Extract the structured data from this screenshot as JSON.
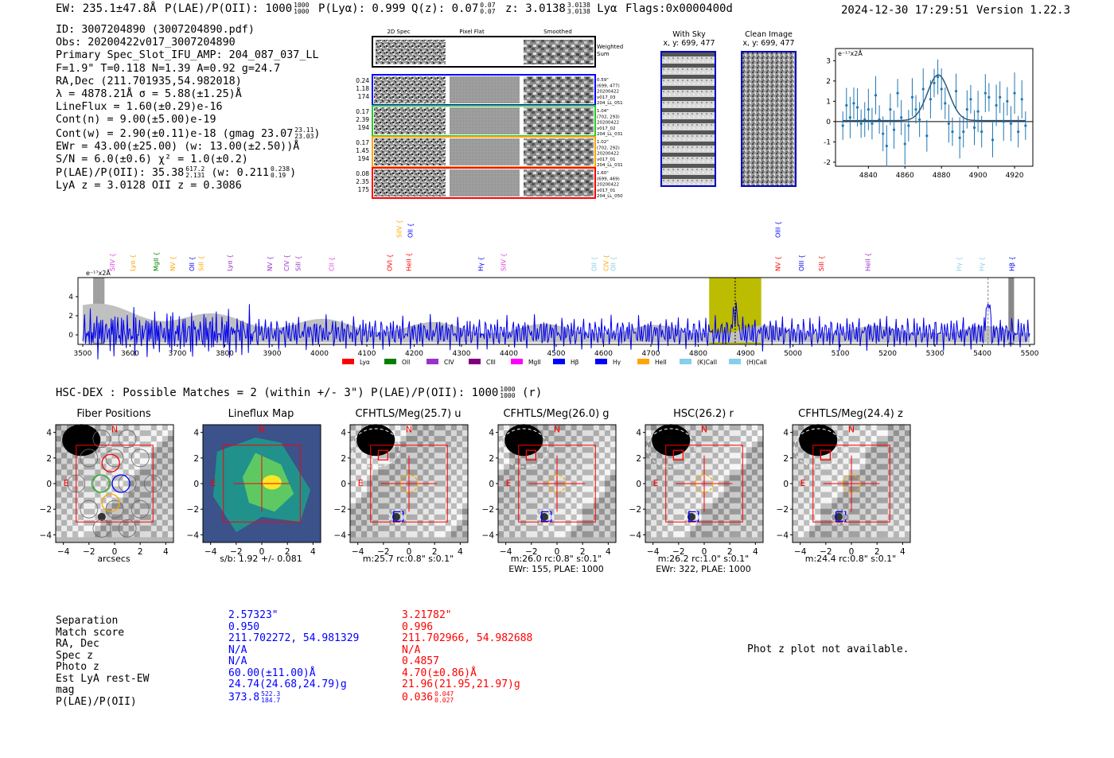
{
  "header": {
    "ew": "EW: 235.1±47.8Å",
    "plae_label": "P(LAE)/P(OII): 1000",
    "plae_up": "1000",
    "plae_dn": "1000",
    "plya": "P(Lyα): 0.999",
    "qz_label": "Q(z): 0.07",
    "qz_up": "0.07",
    "qz_dn": "0.07",
    "z_label": "z: 3.0138",
    "z_up": "3.0138",
    "z_dn": "3.0138",
    "z_line": "Lyα",
    "flags": "Flags:0x0000400d",
    "datetime": "2024-12-30 17:29:51",
    "version": "Version 1.22.3"
  },
  "info": {
    "id": "ID: 3007204890 (3007204890.pdf)",
    "obs": "Obs: 20200422v017_3007204890",
    "primary": "Primary Spec_Slot_IFU_AMP: 204_087_037_LL",
    "params": "F=1.9\"  T=0.118  N=1.39  A=0.92  g=24.7",
    "radec": "RA,Dec (211.701935,54.982018)",
    "lambda": "λ = 4878.21Å   σ = 5.88(±1.25)Å",
    "lineflux": "LineFlux = 1.60(±0.29)e-16",
    "contn": "Cont(n) = 9.00(±5.00)e-19",
    "contw": "Cont(w) = 2.90(±0.11)e-18 (gmag 23.07",
    "contw_up": "23.11",
    "contw_dn": "23.03",
    "contw_end": ")",
    "ewr": "EWr = 43.00(±25.00) (w: 13.00(±2.50))Å",
    "sn": "S/N = 6.0(±0.6)  χ² = 1.0(±0.2)",
    "plae": "P(LAE)/P(OII): 35.38",
    "plae_up": "617.2",
    "plae_dn": "2.131",
    "plae_w": "(w: 0.211",
    "plae_w_up": "0.238",
    "plae_w_dn": "0.19",
    "plae_w_end": ")",
    "lyaz": "LyA z = 3.0128   OII z = 0.3086"
  },
  "cutouts": {
    "col_titles": [
      "2D Spec",
      "Pixel Flat",
      "Smoothed"
    ],
    "weighted_sum": [
      "Weighted",
      "Sum"
    ],
    "rows": [
      {
        "left": [
          "0.24",
          "1.18",
          "174"
        ],
        "right": [
          "0.59\"",
          "(699, 477)",
          "20200422",
          "v017_03",
          "204_LL_051"
        ],
        "color": "#0000ff"
      },
      {
        "left": [
          "0.17",
          "2.39",
          "194"
        ],
        "right": [
          "1.04\"",
          "(702, 293)",
          "20200422",
          "v017_02",
          "204_LL_031"
        ],
        "color": "#22cc22"
      },
      {
        "left": [
          "0.17",
          "1.45",
          "194"
        ],
        "right": [
          "1.02\"",
          "(702, 292)",
          "20200422",
          "v017_01",
          "204_LL_031"
        ],
        "color": "#ffa500"
      },
      {
        "left": [
          "0.08",
          "2.35",
          "175"
        ],
        "right": [
          "1.60\"",
          "(699, 469)",
          "20200422",
          "v017_01",
          "204_LL_050"
        ],
        "color": "#ff0000"
      }
    ],
    "with_sky": [
      "With Sky",
      "x, y: 699, 477"
    ],
    "clean": [
      "Clean Image",
      "x, y: 699, 477"
    ]
  },
  "zoom_chart": {
    "type": "scatter",
    "ylabel": "e⁻¹⁷x2Å",
    "xlim": [
      4822,
      4930
    ],
    "ylim": [
      -2.2,
      3.6
    ],
    "xticks": [
      4840,
      4860,
      4880,
      4900,
      4920
    ],
    "yticks": [
      -2,
      -1,
      0,
      1,
      2,
      3
    ],
    "gauss": {
      "mu": 4878.2,
      "sigma": 5.88,
      "amp": 2.25,
      "base": 0.05
    },
    "points_x": [
      4826,
      4828,
      4830,
      4832,
      4834,
      4836,
      4838,
      4840,
      4842,
      4844,
      4846,
      4848,
      4850,
      4852,
      4854,
      4856,
      4858,
      4860,
      4862,
      4864,
      4866,
      4868,
      4870,
      4872,
      4874,
      4876,
      4878,
      4880,
      4882,
      4884,
      4886,
      4888,
      4890,
      4892,
      4894,
      4896,
      4898,
      4900,
      4902,
      4904,
      4906,
      4908,
      4910,
      4912,
      4914,
      4916,
      4918,
      4920,
      4922,
      4924,
      4926
    ],
    "points_y": [
      -0.2,
      0.8,
      0.2,
      0.9,
      0.7,
      -0.1,
      0.1,
      0.6,
      -0.1,
      1.3,
      0.1,
      -0.6,
      -1.2,
      0.6,
      -0.4,
      1.4,
      0.2,
      -1.1,
      -0.2,
      1.2,
      0.6,
      0.1,
      1.6,
      -0.7,
      1.1,
      1.9,
      2.2,
      1.6,
      0.9,
      -0.1,
      -0.5,
      1.5,
      -0.8,
      -0.5,
      0.6,
      1.1,
      -0.3,
      0.5,
      -0.5,
      1.4,
      1.2,
      -0.9,
      0.8,
      1.2,
      0.0,
      1.0,
      -0.1,
      1.4,
      -0.5,
      1.1,
      -0.2
    ]
  },
  "spectrum": {
    "type": "line",
    "ylabel": "e⁻¹⁷x2Å",
    "xlim": [
      3490,
      5510
    ],
    "ylim": [
      -1.0,
      6.0
    ],
    "xticks": [
      3500,
      3600,
      3700,
      3800,
      3900,
      4000,
      4100,
      4200,
      4300,
      4400,
      4500,
      4600,
      4700,
      4800,
      4900,
      5000,
      5100,
      5200,
      5300,
      5400,
      5500
    ],
    "yticks": [
      0,
      2,
      4
    ],
    "highlight": [
      4823,
      4933
    ],
    "line_center": 4878,
    "lines": [
      {
        "x": 3562,
        "label": "SiIV",
        "color": "#e040e0"
      },
      {
        "x": 3605,
        "label": "Lyα",
        "color": "#ffa500"
      },
      {
        "x": 3655,
        "label": "MgII",
        "color": "#008000"
      },
      {
        "x": 3690,
        "label": "NV",
        "color": "#ffa500"
      },
      {
        "x": 3730,
        "label": "OII",
        "color": "#0000ff"
      },
      {
        "x": 3750,
        "label": "SiII",
        "color": "#ffa500"
      },
      {
        "x": 3810,
        "label": "Lyα",
        "color": "#9932cc"
      },
      {
        "x": 3895,
        "label": "NV",
        "color": "#9932cc"
      },
      {
        "x": 3930,
        "label": "CIV",
        "color": "#9932cc"
      },
      {
        "x": 3955,
        "label": "SiII",
        "color": "#9932cc"
      },
      {
        "x": 4025,
        "label": "CII",
        "color": "#e040e0"
      },
      {
        "x": 4148,
        "label": "OVI",
        "color": "#ff0000"
      },
      {
        "x": 4188,
        "label": "HeII",
        "color": "#ff0000"
      },
      {
        "x": 4340,
        "label": "Hγ",
        "color": "#0000ff"
      },
      {
        "x": 4388,
        "label": "SiIV",
        "color": "#e040e0"
      },
      {
        "x": 4580,
        "label": "OII",
        "color": "#87ceeb"
      },
      {
        "x": 4605,
        "label": "CIV",
        "color": "#ffa500"
      },
      {
        "x": 4620,
        "label": "OII",
        "color": "#87ceeb"
      },
      {
        "x": 4968,
        "label": "NV",
        "color": "#ff0000"
      },
      {
        "x": 5018,
        "label": "OIII",
        "color": "#0000ff"
      },
      {
        "x": 5060,
        "label": "SiII",
        "color": "#ff0000"
      },
      {
        "x": 5158,
        "label": "HeII",
        "color": "#9932cc"
      },
      {
        "x": 5350,
        "label": "Hγ",
        "color": "#87ceeb"
      },
      {
        "x": 5398,
        "label": "Hγ",
        "color": "#87ceeb"
      },
      {
        "x": 5462,
        "label": "Hβ",
        "color": "#0000ff"
      }
    ],
    "upper_lines": [
      {
        "x": 4168,
        "label": "SiIV",
        "color": "#ffa500"
      },
      {
        "x": 4192,
        "label": "OII",
        "color": "#0000ff"
      },
      {
        "x": 4968,
        "label": "OIII",
        "color": "#0000ff"
      }
    ],
    "legend": [
      {
        "label": "Lyα",
        "color": "#ff0000"
      },
      {
        "label": "OII",
        "color": "#008000"
      },
      {
        "label": "CIV",
        "color": "#9932cc"
      },
      {
        "label": "CIII",
        "color": "#800080"
      },
      {
        "label": "MgII",
        "color": "#ff00ff"
      },
      {
        "label": "Hβ",
        "color": "#0000ff"
      },
      {
        "label": "Hγ",
        "color": "#0000ff"
      },
      {
        "label": "HeII",
        "color": "#ffa500"
      },
      {
        "label": "(K)CaII",
        "color": "#87ceeb"
      },
      {
        "label": "(H)CaII",
        "color": "#87ceeb"
      }
    ]
  },
  "hsc": {
    "title": "HSC-DEX : Possible Matches = 2 (within +/- 3\")  P(LAE)/P(OII): 1000",
    "up": "1000",
    "dn": "1000",
    "end": "(r)"
  },
  "imaging": {
    "ticks": [
      -4,
      -2,
      0,
      2,
      4
    ],
    "panels": [
      {
        "title": "Fiber Positions",
        "caption": [
          "arcsecs"
        ],
        "kind": "fiber"
      },
      {
        "title": "Lineflux Map",
        "caption": [
          "s/b: 1.92 +/- 0.081"
        ],
        "kind": "flux"
      },
      {
        "title": "CFHTLS/Meg(25.7) u",
        "caption": [
          "m:25.7 rc:0.8\"  s:0.1\""
        ],
        "kind": "img"
      },
      {
        "title": "CFHTLS/Meg(26.0) g",
        "caption": [
          "m:26.0 rc:0.8\"  s:0.1\"",
          "EWr: 155, PLAE: 1000"
        ],
        "kind": "img"
      },
      {
        "title": "HSC(26.2) r",
        "caption": [
          "m:26.2 rc:1.0\"  s:0.1\"",
          "EWr: 322, PLAE: 1000"
        ],
        "kind": "img"
      },
      {
        "title": "CFHTLS/Meg(24.4) z",
        "caption": [
          "m:24.4 rc:0.8\"  s:0.1\""
        ],
        "kind": "img"
      }
    ],
    "n": "N",
    "e": "E"
  },
  "table": {
    "labels": [
      "Separation",
      "Match score",
      "RA, Dec",
      "Spec z",
      "Photo z",
      "Est LyA rest-EW",
      "mag",
      "P(LAE)/P(OII)"
    ],
    "col1": [
      "2.57323\"",
      "0.950",
      "211.702272, 54.981329",
      "N/A",
      "N/A",
      "60.00(±11.00)Å",
      "24.74(24.68,24.79)g",
      "373.8"
    ],
    "col1_up": "522.3",
    "col1_dn": "184.7",
    "col2": [
      "3.21782\"",
      "0.996",
      "211.702966, 54.982688",
      "N/A",
      "0.4857",
      "4.70(±0.86)Å",
      "21.96(21.95,21.97)g",
      "0.036"
    ],
    "col2_up": "0.047",
    "col2_dn": "0.027",
    "photz_note": "Phot z plot not available."
  }
}
